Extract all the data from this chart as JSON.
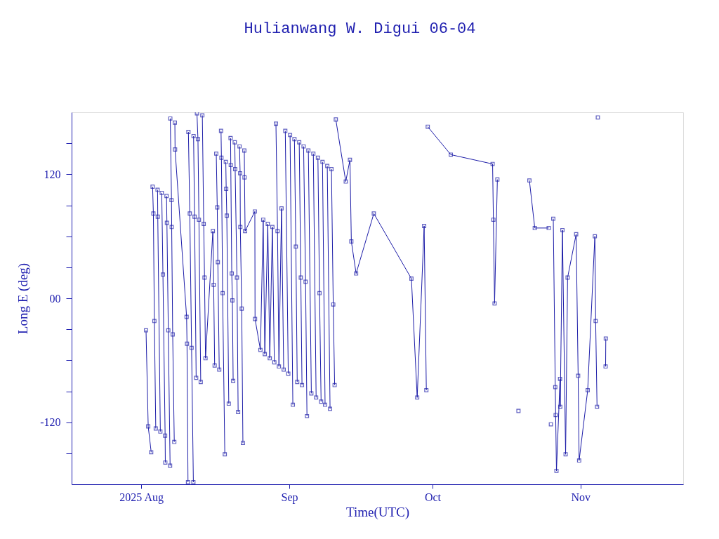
{
  "chart_data": {
    "type": "line",
    "title": "Hulianwang W. Digui 06-04",
    "xlabel": "Time(UTC)",
    "ylabel": "Long E (deg)",
    "series": [
      {
        "color": "#1c1ca8",
        "x": [
          "2025-08-02T00:00",
          "2025-08-02T11:00",
          "2025-08-03T02:00"
        ],
        "values": [
          -31,
          -124,
          -149
        ]
      },
      {
        "color": "#1c1ca8",
        "x": [
          "2025-08-03T09:00",
          "2025-08-03T13:00",
          "2025-08-03T18:00",
          "2025-08-04T01:00"
        ],
        "values": [
          108,
          82,
          -22,
          -126
        ]
      },
      {
        "color": "#1c1ca8",
        "x": [
          "2025-08-04T10:00",
          "2025-08-04T11:00",
          "2025-08-05T00:00"
        ],
        "values": [
          105,
          79,
          -129
        ]
      },
      {
        "color": "#1c1ca8",
        "x": [
          "2025-08-05T07:00",
          "2025-08-05T13:00",
          "2025-08-06T00:00",
          "2025-08-06T01:00"
        ],
        "values": [
          102,
          23,
          -133,
          -159
        ]
      },
      {
        "color": "#1c1ca8",
        "x": [
          "2025-08-06T07:00",
          "2025-08-06T09:00",
          "2025-08-06T16:00",
          "2025-08-07T01:00"
        ],
        "values": [
          99,
          73,
          -31,
          -162
        ]
      },
      {
        "color": "#1c1ca8",
        "x": [
          "2025-08-07T02:00",
          "2025-08-07T08:00",
          "2025-08-07T09:00",
          "2025-08-07T14:00",
          "2025-08-07T22:00"
        ],
        "values": [
          174,
          95,
          69,
          -35,
          -139
        ]
      },
      {
        "color": "#1c1ca8",
        "x": [
          "2025-08-08T01:00",
          "2025-08-08T02:00",
          "2025-08-10T12:00",
          "2025-08-10T14:00",
          "2025-08-10T19:00"
        ],
        "values": [
          170,
          144,
          -18,
          -44,
          -178
        ]
      },
      {
        "color": "#1c1ca8",
        "x": [
          "2025-08-10T21:00",
          "2025-08-11T04:00",
          "2025-08-11T13:00",
          "2025-08-11T22:00"
        ],
        "values": [
          161,
          82,
          -48,
          -178
        ]
      },
      {
        "color": "#1c1ca8",
        "x": [
          "2025-08-11T23:00",
          "2025-08-12T04:00",
          "2025-08-12T12:00"
        ],
        "values": [
          157,
          79,
          -77
        ]
      },
      {
        "color": "#1c1ca8",
        "x": [
          "2025-08-12T16:00",
          "2025-08-12T21:00",
          "2025-08-13T02:00",
          "2025-08-13T11:00"
        ],
        "values": [
          179,
          154,
          76,
          -81
        ]
      },
      {
        "color": "#1c1ca8",
        "x": [
          "2025-08-13T19:00",
          "2025-08-14T02:00",
          "2025-08-14T06:00",
          "2025-08-14T11:00",
          "2025-08-16T00:00",
          "2025-08-16T04:00",
          "2025-08-16T09:00"
        ],
        "values": [
          177,
          72,
          20,
          -58,
          65,
          13,
          -65
        ]
      },
      {
        "color": "#1c1ca8",
        "x": [
          "2025-08-16T17:00",
          "2025-08-16T22:00",
          "2025-08-17T01:00",
          "2025-08-17T08:00"
        ],
        "values": [
          140,
          88,
          35,
          -69
        ]
      },
      {
        "color": "#1c1ca8",
        "x": [
          "2025-08-17T17:00",
          "2025-08-17T19:00",
          "2025-08-18T01:00",
          "2025-08-18T12:00"
        ],
        "values": [
          162,
          136,
          5,
          -151
        ]
      },
      {
        "color": "#1c1ca8",
        "x": [
          "2025-08-18T17:00",
          "2025-08-18T19:00",
          "2025-08-18T22:00",
          "2025-08-19T08:00"
        ],
        "values": [
          132,
          106,
          80,
          -102
        ]
      },
      {
        "color": "#1c1ca8",
        "x": [
          "2025-08-19T17:00",
          "2025-08-19T18:00",
          "2025-08-19T23:00",
          "2025-08-20T02:00",
          "2025-08-20T06:00"
        ],
        "values": [
          155,
          129,
          24,
          -2,
          -80
        ]
      },
      {
        "color": "#1c1ca8",
        "x": [
          "2025-08-20T14:00",
          "2025-08-20T16:00",
          "2025-08-21T01:00",
          "2025-08-21T07:00"
        ],
        "values": [
          151,
          125,
          20,
          -110
        ]
      },
      {
        "color": "#1c1ca8",
        "x": [
          "2025-08-21T14:00",
          "2025-08-21T17:00",
          "2025-08-21T18:00",
          "2025-08-22T01:00",
          "2025-08-22T07:00"
        ],
        "values": [
          147,
          121,
          69,
          -10,
          -140
        ]
      },
      {
        "color": "#1c1ca8",
        "x": [
          "2025-08-22T14:00",
          "2025-08-22T15:00",
          "2025-08-22T18:00",
          "2025-08-24T19:00",
          "2025-08-24T20:00",
          "2025-08-25T23:00",
          "2025-08-26T13:00",
          "2025-08-26T21:00",
          "2025-08-27T12:00",
          "2025-08-27T22:00",
          "2025-08-28T11:00",
          "2025-08-28T21:00"
        ],
        "values": [
          143,
          117,
          65,
          84,
          -20,
          -50,
          76,
          -54,
          72,
          -58,
          69,
          -62
        ]
      },
      {
        "color": "#1c1ca8",
        "x": [
          "2025-08-29T05:00",
          "2025-08-29T13:00",
          "2025-08-29T20:00",
          "2025-08-30T09:00",
          "2025-08-30T20:00"
        ],
        "values": [
          169,
          65,
          -66,
          87,
          -69
        ]
      },
      {
        "color": "#1c1ca8",
        "x": [
          "2025-08-31T04:00",
          "2025-08-31T19:00"
        ],
        "values": [
          162,
          -73
        ]
      },
      {
        "color": "#1c1ca8",
        "x": [
          "2025-09-01T04:00",
          "2025-09-01T18:00"
        ],
        "values": [
          158,
          -103
        ]
      },
      {
        "color": "#1c1ca8",
        "x": [
          "2025-09-02T02:00",
          "2025-09-02T09:00",
          "2025-09-02T16:00"
        ],
        "values": [
          154,
          50,
          -81
        ]
      },
      {
        "color": "#1c1ca8",
        "x": [
          "2025-09-03T02:00",
          "2025-09-03T10:00",
          "2025-09-03T16:00"
        ],
        "values": [
          151,
          20,
          -84
        ]
      },
      {
        "color": "#1c1ca8",
        "x": [
          "2025-09-04T00:00",
          "2025-09-04T10:00",
          "2025-09-04T17:00"
        ],
        "values": [
          147,
          16,
          -114
        ]
      },
      {
        "color": "#1c1ca8",
        "x": [
          "2025-09-05T00:00",
          "2025-09-05T15:00"
        ],
        "values": [
          143,
          -92
        ]
      },
      {
        "color": "#1c1ca8",
        "x": [
          "2025-09-06T01:00",
          "2025-09-06T15:00"
        ],
        "values": [
          140,
          -96
        ]
      },
      {
        "color": "#1c1ca8",
        "x": [
          "2025-09-07T00:00",
          "2025-09-07T08:00",
          "2025-09-07T16:00"
        ],
        "values": [
          136,
          5,
          -100
        ]
      },
      {
        "color": "#1c1ca8",
        "x": [
          "2025-09-07T23:00",
          "2025-09-08T12:00"
        ],
        "values": [
          132,
          -103
        ]
      },
      {
        "color": "#1c1ca8",
        "x": [
          "2025-09-08T23:00",
          "2025-09-09T13:00"
        ],
        "values": [
          128,
          -107
        ]
      },
      {
        "color": "#1c1ca8",
        "x": [
          "2025-09-09T20:00",
          "2025-09-10T05:00",
          "2025-09-10T12:00"
        ],
        "values": [
          125,
          -6,
          -84
        ]
      },
      {
        "color": "#1c1ca8",
        "x": [
          "2025-09-10T18:00",
          "2025-09-12T20:00",
          "2025-09-13T17:00",
          "2025-09-14T00:00",
          "2025-09-15T00:00",
          "2025-09-18T17:00",
          "2025-09-26T14:00",
          "2025-09-27T19:00",
          "2025-09-29T06:00",
          "2025-09-29T17:00"
        ],
        "values": [
          173,
          113,
          134,
          55,
          24,
          82,
          19,
          -96,
          70,
          -89
        ]
      },
      {
        "color": "#1c1ca8",
        "x": [
          "2025-09-30T00:00",
          "2025-10-04T20:00",
          "2025-10-13T14:00",
          "2025-10-13T18:00",
          "2025-10-14T00:00",
          "2025-10-14T14:00"
        ],
        "values": [
          166,
          139,
          130,
          76,
          -5,
          115
        ]
      },
      {
        "color": "#1c1ca8",
        "x": [
          "2025-10-19T00:00"
        ],
        "values": [
          -109
        ]
      },
      {
        "color": "#1c1ca8",
        "x": [
          "2025-10-21T07:00",
          "2025-10-22T10:00",
          "2025-10-25T08:00"
        ],
        "values": [
          114,
          68,
          68
        ]
      },
      {
        "color": "#1c1ca8",
        "x": [
          "2025-10-25T19:00"
        ],
        "values": [
          -122
        ]
      },
      {
        "color": "#1c1ca8",
        "x": [
          "2025-10-26T07:00",
          "2025-10-26T17:00",
          "2025-10-26T19:00",
          "2025-10-26T23:00",
          "2025-10-27T17:00",
          "2025-10-27T18:00",
          "2025-10-28T05:00",
          "2025-10-28T21:00",
          "2025-10-29T07:00",
          "2025-10-31T02:00",
          "2025-10-31T12:00",
          "2025-10-31T17:00",
          "2025-11-02T12:00",
          "2025-11-04T00:00",
          "2025-11-04T04:00",
          "2025-11-04T11:00"
        ],
        "values": [
          77,
          -86,
          -113,
          -167,
          -78,
          -105,
          66,
          -151,
          20,
          62,
          -75,
          -157,
          -89,
          60,
          -22,
          -105
        ]
      },
      {
        "color": "#1c1ca8",
        "x": [
          "2025-11-04T15:00"
        ],
        "values": [
          175
        ]
      },
      {
        "color": "#1c1ca8",
        "x": [
          "2025-11-06T06:00",
          "2025-11-06T07:00"
        ],
        "values": [
          -66,
          -39
        ]
      }
    ],
    "xlim": [
      "2025-07-17T10:00",
      "2025-11-22T12:00"
    ],
    "xticks": [
      {
        "value": "2025-08-01",
        "label": "2025 Aug"
      },
      {
        "value": "2025-09-01",
        "label": "Sep"
      },
      {
        "value": "2025-10-01",
        "label": "Oct"
      },
      {
        "value": "2025-11-01",
        "label": "Nov"
      }
    ],
    "ylim": [
      -180,
      180
    ],
    "yticks": [
      {
        "value": -150,
        "label": null
      },
      {
        "value": -120,
        "label": "-120"
      },
      {
        "value": -90,
        "label": null
      },
      {
        "value": -60,
        "label": null
      },
      {
        "value": -30,
        "label": null
      },
      {
        "value": 0,
        "label": "00"
      },
      {
        "value": 30,
        "label": null
      },
      {
        "value": 60,
        "label": null
      },
      {
        "value": 90,
        "label": null
      },
      {
        "value": 120,
        "label": "120"
      },
      {
        "value": 150,
        "label": null
      }
    ],
    "grid": false,
    "legend": false,
    "marker": "square",
    "line_style": "solid"
  }
}
